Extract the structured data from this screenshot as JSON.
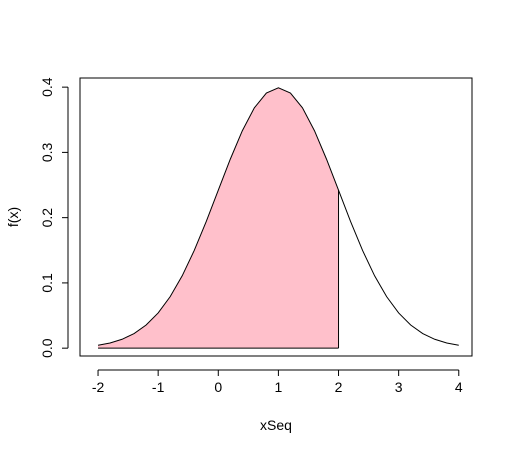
{
  "chart_data": {
    "type": "area",
    "title": "",
    "xlabel": "xSeq",
    "ylabel": "f(x)",
    "xlim": [
      -2.3,
      4.22
    ],
    "ylim": [
      -0.012,
      0.414
    ],
    "x_ticks": [
      -2,
      -1,
      0,
      1,
      2,
      3,
      4
    ],
    "y_ticks": [
      0.0,
      0.1,
      0.2,
      0.3,
      0.4
    ],
    "x_tick_labels": [
      "-2",
      "-1",
      "0",
      "1",
      "2",
      "3",
      "4"
    ],
    "y_tick_labels": [
      "0.0",
      "0.1",
      "0.2",
      "0.3",
      "0.4"
    ],
    "grid": false,
    "legend": "none",
    "fill_color": "#FFC0CB",
    "line_color": "#000000",
    "curve": {
      "distribution": "normal",
      "mean": 1,
      "sd": 1,
      "x": [
        -2.0,
        -1.8,
        -1.6,
        -1.4,
        -1.2,
        -1.0,
        -0.8,
        -0.6,
        -0.4,
        -0.2,
        0.0,
        0.2,
        0.4,
        0.6,
        0.8,
        1.0,
        1.2,
        1.4,
        1.6,
        1.8,
        2.0,
        2.2,
        2.4,
        2.6,
        2.8,
        3.0,
        3.2,
        3.4,
        3.6,
        3.8,
        4.0
      ],
      "y": [
        0.0044,
        0.0079,
        0.0136,
        0.0224,
        0.0355,
        0.054,
        0.079,
        0.1109,
        0.1497,
        0.1942,
        0.242,
        0.2897,
        0.3332,
        0.3683,
        0.391,
        0.3989,
        0.391,
        0.3683,
        0.3332,
        0.2897,
        0.242,
        0.1942,
        0.1497,
        0.1109,
        0.079,
        0.054,
        0.0355,
        0.0224,
        0.0136,
        0.0079,
        0.0044
      ]
    },
    "shaded_region": {
      "x_from": -2.0,
      "x_to": 2.0
    }
  }
}
